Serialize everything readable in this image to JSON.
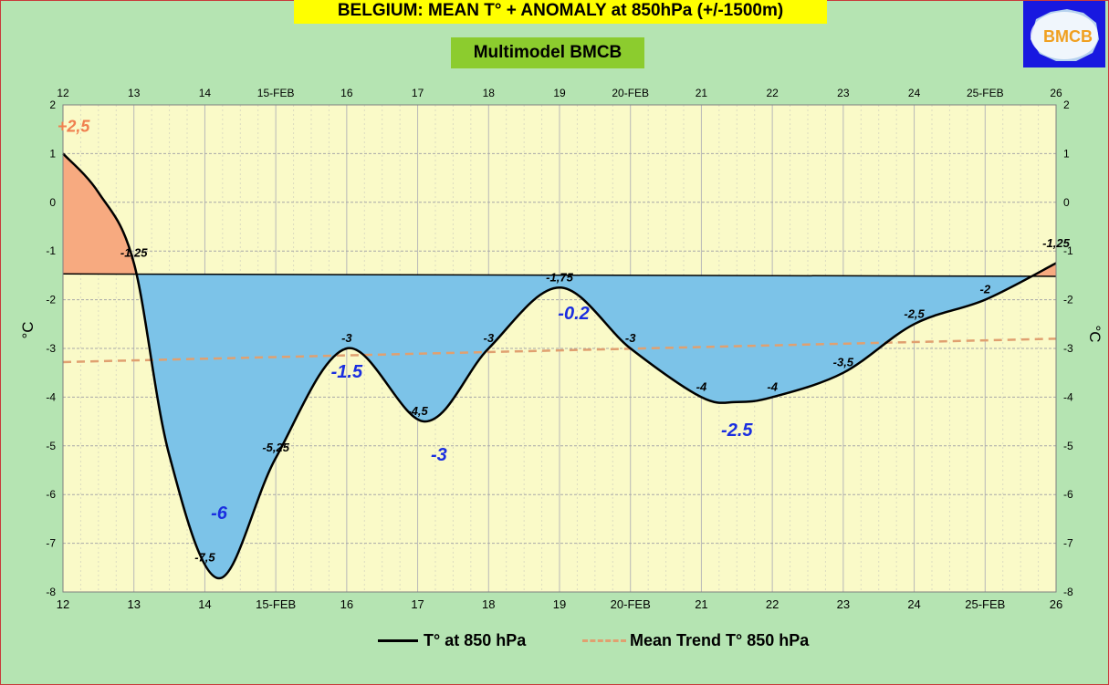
{
  "header": {
    "title": "BELGIUM:  MEAN T° + ANOMALY at 850hPa (+/-1500m)",
    "subtitle": "Multimodel BMCB",
    "logo_text": "BMCB"
  },
  "colors": {
    "background": "#b5e4b2",
    "plot_bg": "#fafac8",
    "title_bg": "#ffff00",
    "subtitle_bg": "#8ccc2e",
    "warm_fill": "#f7aa80",
    "cold_fill": "#7cc3e8",
    "temperature_line": "#000000",
    "trend_line": "#e0a070",
    "anomaly_text": "#1a2ee0",
    "warm_anomaly_text": "#f08050"
  },
  "chart_data": {
    "type": "line",
    "title": "BELGIUM:  MEAN T° + ANOMALY at 850hPa (+/-1500m)",
    "ylabel": "°C",
    "ylabel_right": "°C",
    "ylim": [
      -8,
      2
    ],
    "yticks": [
      2,
      1,
      0,
      -1,
      -2,
      -3,
      -4,
      -5,
      -6,
      -7,
      -8
    ],
    "xlim": [
      12,
      26
    ],
    "x_ticks": [
      {
        "x": 12,
        "label": "12"
      },
      {
        "x": 13,
        "label": "13"
      },
      {
        "x": 14,
        "label": "14"
      },
      {
        "x": 15,
        "label": "15-FEB"
      },
      {
        "x": 16,
        "label": "16"
      },
      {
        "x": 17,
        "label": "17"
      },
      {
        "x": 18,
        "label": "18"
      },
      {
        "x": 19,
        "label": "19"
      },
      {
        "x": 20,
        "label": "20-FEB"
      },
      {
        "x": 21,
        "label": "21"
      },
      {
        "x": 22,
        "label": "22"
      },
      {
        "x": 23,
        "label": "23"
      },
      {
        "x": 24,
        "label": "24"
      },
      {
        "x": 25,
        "label": "25-FEB"
      },
      {
        "x": 26,
        "label": "26"
      }
    ],
    "grid": true,
    "legend_position": "bottom",
    "series": [
      {
        "name": "T° at 850 hPa",
        "style": "solid",
        "points": [
          {
            "x": 12.0,
            "y": 1.0
          },
          {
            "x": 12.5,
            "y": 0.2
          },
          {
            "x": 13.0,
            "y": -1.25
          },
          {
            "x": 13.5,
            "y": -5.2
          },
          {
            "x": 14.2,
            "y": -7.72
          },
          {
            "x": 15.0,
            "y": -5.25
          },
          {
            "x": 16.0,
            "y": -3.0
          },
          {
            "x": 17.1,
            "y": -4.5
          },
          {
            "x": 18.0,
            "y": -3.0
          },
          {
            "x": 19.0,
            "y": -1.75
          },
          {
            "x": 20.0,
            "y": -3.0
          },
          {
            "x": 21.0,
            "y": -4.0
          },
          {
            "x": 21.5,
            "y": -4.1
          },
          {
            "x": 22.0,
            "y": -4.0
          },
          {
            "x": 23.0,
            "y": -3.5
          },
          {
            "x": 24.0,
            "y": -2.5
          },
          {
            "x": 25.0,
            "y": -2.0
          },
          {
            "x": 26.0,
            "y": -1.25
          }
        ]
      },
      {
        "name": "Mean Trend T° 850 hPa",
        "style": "dashed",
        "points": [
          {
            "x": 12,
            "y": -3.28
          },
          {
            "x": 26,
            "y": -2.8
          }
        ]
      }
    ],
    "reference_line": {
      "y_start": -1.47,
      "y_end": -1.52
    },
    "point_labels": [
      {
        "x": 13.0,
        "y": -1.25,
        "text": "-1,25"
      },
      {
        "x": 14.0,
        "y": -7.5,
        "text": "-7,5"
      },
      {
        "x": 15.0,
        "y": -5.25,
        "text": "-5,25"
      },
      {
        "x": 16.0,
        "y": -3.0,
        "text": "-3"
      },
      {
        "x": 17.0,
        "y": -4.5,
        "text": "-4,5"
      },
      {
        "x": 18.0,
        "y": -3.0,
        "text": "-3"
      },
      {
        "x": 19.0,
        "y": -1.75,
        "text": "-1,75"
      },
      {
        "x": 20.0,
        "y": -3.0,
        "text": "-3"
      },
      {
        "x": 21.0,
        "y": -4.0,
        "text": "-4"
      },
      {
        "x": 22.0,
        "y": -4.0,
        "text": "-4"
      },
      {
        "x": 23.0,
        "y": -3.5,
        "text": "-3,5"
      },
      {
        "x": 24.0,
        "y": -2.5,
        "text": "-2,5"
      },
      {
        "x": 25.0,
        "y": -2.0,
        "text": "-2"
      },
      {
        "x": 26.0,
        "y": -1.05,
        "text": "-1,25"
      }
    ],
    "anomaly_labels": [
      {
        "x": 12.15,
        "y": 1.45,
        "text": "+2,5",
        "kind": "warm"
      },
      {
        "x": 14.2,
        "y": -6.5,
        "text": "-6",
        "kind": "cold"
      },
      {
        "x": 16.0,
        "y": -3.6,
        "text": "-1.5",
        "kind": "cold"
      },
      {
        "x": 17.3,
        "y": -5.3,
        "text": "-3",
        "kind": "cold"
      },
      {
        "x": 19.2,
        "y": -2.4,
        "text": "-0.2",
        "kind": "cold"
      },
      {
        "x": 21.5,
        "y": -4.8,
        "text": "-2.5",
        "kind": "cold"
      }
    ]
  },
  "legend": {
    "temperature_label": "T° at 850 hPa",
    "trend_label": "Mean Trend T° 850 hPa"
  }
}
